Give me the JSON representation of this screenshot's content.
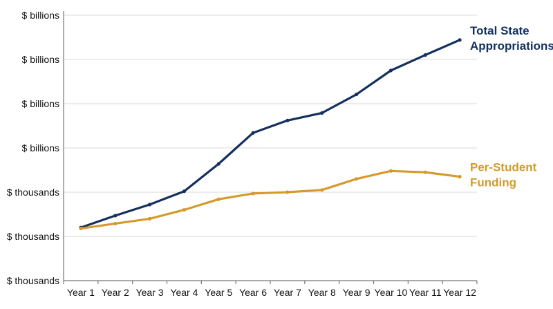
{
  "chart_data": {
    "type": "line",
    "title": "",
    "xlabel": "",
    "ylabel": "",
    "categories": [
      "Year 1",
      "Year 2",
      "Year 3",
      "Year 4",
      "Year 5",
      "Year 6",
      "Year 7",
      "Year 8",
      "Year 9",
      "Year 10",
      "Year 11",
      "Year 12"
    ],
    "y_tick_labels": [
      "$ thousands",
      "$ thousands",
      "$ thousands",
      "$ billions",
      "$ billions",
      "$ billions",
      "$ billions"
    ],
    "ylim": [
      0,
      6
    ],
    "grid": true,
    "legend": "inline-right",
    "series": [
      {
        "name": "Total State Appropriations",
        "name_lines": [
          "Total State",
          "Appropriations"
        ],
        "color": "#14305e",
        "values": [
          1.2,
          1.47,
          1.72,
          2.02,
          2.64,
          3.34,
          3.62,
          3.79,
          4.21,
          4.75,
          5.1,
          5.44
        ]
      },
      {
        "name": "Per-Student Funding",
        "name_lines": [
          "Per-Student",
          "Funding"
        ],
        "color": "#d49a2a",
        "values": [
          1.18,
          1.29,
          1.4,
          1.6,
          1.84,
          1.97,
          2.0,
          2.05,
          2.3,
          2.48,
          2.45,
          2.35
        ]
      }
    ]
  }
}
